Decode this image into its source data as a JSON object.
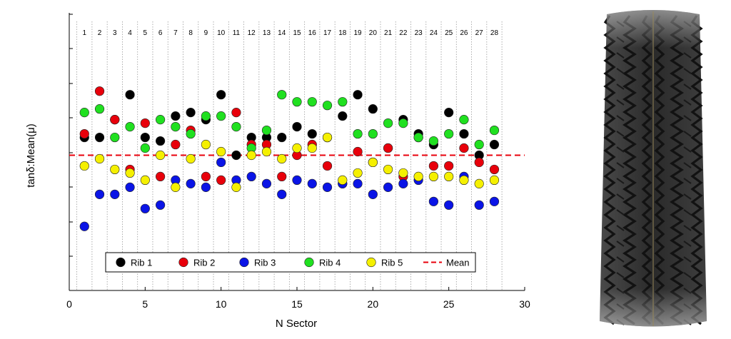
{
  "chart_data": {
    "type": "scatter",
    "xlabel": "N Sector",
    "ylabel": "tanδ:Mean(μ)",
    "xlim": [
      0,
      30
    ],
    "xticks": [
      0,
      5,
      10,
      15,
      20,
      25,
      30
    ],
    "sector_labels": [
      "1",
      "2",
      "3",
      "4",
      "5",
      "6",
      "7",
      "8",
      "9",
      "10",
      "11",
      "12",
      "13",
      "14",
      "15",
      "16",
      "17",
      "18",
      "19",
      "20",
      "21",
      "22",
      "23",
      "24",
      "25",
      "26",
      "27",
      "28"
    ],
    "y_tick_labels_shown": false,
    "mean": 0.5,
    "series": [
      {
        "name": "Rib 1",
        "color": "#000000",
        "x": [
          1,
          2,
          3,
          4,
          5,
          6,
          7,
          8,
          9,
          10,
          11,
          12,
          13,
          14,
          15,
          16,
          17,
          18,
          19,
          20,
          21,
          22,
          23,
          24,
          25,
          26,
          27,
          28
        ],
        "y": [
          0.55,
          0.55,
          0.6,
          0.67,
          0.55,
          0.54,
          0.61,
          0.62,
          0.6,
          0.67,
          0.5,
          0.55,
          0.55,
          0.55,
          0.58,
          0.56,
          0.55,
          0.61,
          0.67,
          0.63,
          0.52,
          0.6,
          0.56,
          0.53,
          0.62,
          0.56,
          0.5,
          0.53
        ]
      },
      {
        "name": "Rib 2",
        "color": "#e8000b",
        "x": [
          1,
          2,
          3,
          4,
          5,
          6,
          7,
          8,
          9,
          10,
          11,
          12,
          13,
          14,
          15,
          16,
          17,
          18,
          19,
          20,
          21,
          22,
          23,
          24,
          25,
          26,
          27,
          28
        ],
        "y": [
          0.56,
          0.68,
          0.6,
          0.46,
          0.59,
          0.44,
          0.53,
          0.57,
          0.44,
          0.43,
          0.62,
          0.53,
          0.53,
          0.44,
          0.5,
          0.53,
          0.47,
          0.42,
          0.51,
          0.48,
          0.52,
          0.44,
          0.55,
          0.47,
          0.47,
          0.52,
          0.48,
          0.46
        ]
      },
      {
        "name": "Rib 3",
        "color": "#0a14e6",
        "x": [
          1,
          2,
          3,
          4,
          5,
          6,
          7,
          8,
          9,
          10,
          11,
          12,
          13,
          14,
          15,
          16,
          17,
          18,
          19,
          20,
          21,
          22,
          23,
          24,
          25,
          26,
          27,
          28
        ],
        "y": [
          0.3,
          0.39,
          0.39,
          0.41,
          0.35,
          0.36,
          0.43,
          0.42,
          0.41,
          0.48,
          0.43,
          0.44,
          0.42,
          0.39,
          0.43,
          0.42,
          0.41,
          0.42,
          0.42,
          0.39,
          0.41,
          0.42,
          0.43,
          0.37,
          0.36,
          0.44,
          0.36,
          0.37
        ]
      },
      {
        "name": "Rib 4",
        "color": "#20e020",
        "x": [
          1,
          2,
          3,
          4,
          5,
          6,
          7,
          8,
          9,
          10,
          11,
          12,
          13,
          14,
          15,
          16,
          17,
          18,
          19,
          20,
          21,
          22,
          23,
          24,
          25,
          26,
          27,
          28
        ],
        "y": [
          0.62,
          0.63,
          0.55,
          0.58,
          0.52,
          0.6,
          0.58,
          0.56,
          0.61,
          0.61,
          0.58,
          0.52,
          0.57,
          0.67,
          0.65,
          0.65,
          0.64,
          0.65,
          0.56,
          0.56,
          0.59,
          0.59,
          0.55,
          0.54,
          0.56,
          0.6,
          0.53,
          0.57
        ]
      },
      {
        "name": "Rib 5",
        "color": "#f5f000",
        "x": [
          1,
          2,
          3,
          4,
          5,
          6,
          7,
          8,
          9,
          10,
          11,
          12,
          13,
          14,
          15,
          16,
          17,
          18,
          19,
          20,
          21,
          22,
          23,
          24,
          25,
          26,
          27,
          28
        ],
        "y": [
          0.47,
          0.49,
          0.46,
          0.45,
          0.43,
          0.5,
          0.41,
          0.49,
          0.53,
          0.51,
          0.41,
          0.5,
          0.51,
          0.49,
          0.52,
          0.52,
          0.55,
          0.43,
          0.45,
          0.48,
          0.46,
          0.45,
          0.44,
          0.44,
          0.44,
          0.43,
          0.42,
          0.43
        ]
      }
    ],
    "legend": {
      "placement": "bottom-center",
      "entries": [
        "Rib 1",
        "Rib 2",
        "Rib 3",
        "Rib 4",
        "Rib 5",
        "Mean"
      ],
      "mean_style": "red dashed line"
    },
    "grid": "vertical dotted lines at sector boundaries"
  },
  "colors": {
    "mean_line": "#e8000b",
    "tire_rubber": "#2b2b2b"
  },
  "image": {
    "subject": "tire-tread-photo"
  }
}
